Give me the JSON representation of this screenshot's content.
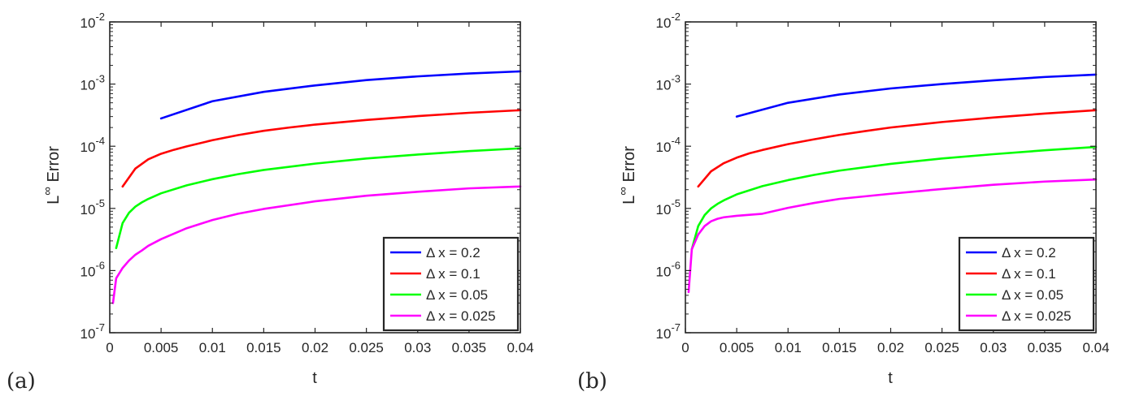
{
  "figure": {
    "colors": {
      "axis": "#262626",
      "text": "#262626",
      "legend_border": "#262626"
    }
  },
  "chart_data": [
    {
      "panel_label": "(a)",
      "type": "line",
      "xlabel": "t",
      "ylabel_base": "L",
      "ylabel_sup": "∞",
      "ylabel_rest": " Error",
      "xscale": "linear",
      "yscale": "log",
      "xlim": [
        0,
        0.04
      ],
      "ylim": [
        1e-07,
        0.01
      ],
      "xticks": [
        0,
        0.005,
        0.01,
        0.015,
        0.02,
        0.025,
        0.03,
        0.035,
        0.04
      ],
      "xtick_labels": [
        "0",
        "0.005",
        "0.01",
        "0.015",
        "0.02",
        "0.025",
        "0.03",
        "0.035",
        "0.04"
      ],
      "yticks": [
        {
          "value": 1e-07,
          "base": "10",
          "exp": "-7"
        },
        {
          "value": 1e-06,
          "base": "10",
          "exp": "-6"
        },
        {
          "value": 1e-05,
          "base": "10",
          "exp": "-5"
        },
        {
          "value": 0.0001,
          "base": "10",
          "exp": "-4"
        },
        {
          "value": 0.001,
          "base": "10",
          "exp": "-3"
        },
        {
          "value": 0.01,
          "base": "10",
          "exp": "-2"
        }
      ],
      "grid": false,
      "legend_position": "bottom-right",
      "series": [
        {
          "name": "Δ x = 0.2",
          "color": "#0000ff",
          "x": [
            0.005,
            0.01,
            0.015,
            0.02,
            0.025,
            0.03,
            0.035,
            0.04
          ],
          "y": [
            0.00028,
            0.00053,
            0.00075,
            0.00095,
            0.00116,
            0.00133,
            0.00148,
            0.0016
          ]
        },
        {
          "name": "Δ x = 0.1",
          "color": "#ff0000",
          "x": [
            0.00125,
            0.0025,
            0.00375,
            0.005,
            0.00625,
            0.0075,
            0.01,
            0.0125,
            0.015,
            0.0175,
            0.02,
            0.025,
            0.03,
            0.035,
            0.04
          ],
          "y": [
            2.25e-05,
            4.38e-05,
            6.16e-05,
            7.57e-05,
            8.77e-05,
            9.95e-05,
            0.000125,
            0.000151,
            0.000177,
            0.0002,
            0.000223,
            0.000265,
            0.000305,
            0.000345,
            0.00038
          ]
        },
        {
          "name": "Δ x = 0.05",
          "color": "#00ff00",
          "x": [
            0.000625,
            0.00125,
            0.001875,
            0.0025,
            0.003125,
            0.00375,
            0.005,
            0.0075,
            0.01,
            0.0125,
            0.015,
            0.02,
            0.025,
            0.03,
            0.035,
            0.04
          ],
          "y": [
            2.3e-06,
            5.8e-06,
            8.5e-06,
            1.07e-05,
            1.25e-05,
            1.42e-05,
            1.75e-05,
            2.35e-05,
            2.95e-05,
            3.55e-05,
            4.15e-05,
            5.25e-05,
            6.35e-05,
            7.35e-05,
            8.35e-05,
            9.25e-05
          ]
        },
        {
          "name": "Δ x = 0.025",
          "color": "#ff00ff",
          "x": [
            0.0003125,
            0.000625,
            0.00125,
            0.001875,
            0.0025,
            0.003125,
            0.00375,
            0.005,
            0.0075,
            0.01,
            0.0125,
            0.015,
            0.02,
            0.025,
            0.03,
            0.035,
            0.04
          ],
          "y": [
            3e-07,
            7.5e-07,
            1.1e-06,
            1.45e-06,
            1.8e-06,
            2.1e-06,
            2.5e-06,
            3.2e-06,
            4.8e-06,
            6.5e-06,
            8.2e-06,
            9.8e-06,
            1.3e-05,
            1.6e-05,
            1.85e-05,
            2.1e-05,
            2.25e-05
          ]
        }
      ]
    },
    {
      "panel_label": "(b)",
      "type": "line",
      "xlabel": "t",
      "ylabel_base": "L",
      "ylabel_sup": "∞",
      "ylabel_rest": " Error",
      "xscale": "linear",
      "yscale": "log",
      "xlim": [
        0,
        0.04
      ],
      "ylim": [
        1e-07,
        0.01
      ],
      "xticks": [
        0,
        0.005,
        0.01,
        0.015,
        0.02,
        0.025,
        0.03,
        0.035,
        0.04
      ],
      "xtick_labels": [
        "0",
        "0.005",
        "0.01",
        "0.015",
        "0.02",
        "0.025",
        "0.03",
        "0.035",
        "0.04"
      ],
      "yticks": [
        {
          "value": 1e-07,
          "base": "10",
          "exp": "-7"
        },
        {
          "value": 1e-06,
          "base": "10",
          "exp": "-6"
        },
        {
          "value": 1e-05,
          "base": "10",
          "exp": "-5"
        },
        {
          "value": 0.0001,
          "base": "10",
          "exp": "-4"
        },
        {
          "value": 0.001,
          "base": "10",
          "exp": "-3"
        },
        {
          "value": 0.01,
          "base": "10",
          "exp": "-2"
        }
      ],
      "grid": false,
      "legend_position": "bottom-right",
      "series": [
        {
          "name": "Δ x = 0.2",
          "color": "#0000ff",
          "x": [
            0.005,
            0.01,
            0.015,
            0.02,
            0.025,
            0.03,
            0.035,
            0.04
          ],
          "y": [
            0.0003,
            0.0005,
            0.00068,
            0.00085,
            0.001,
            0.00115,
            0.0013,
            0.00142
          ]
        },
        {
          "name": "Δ x = 0.1",
          "color": "#ff0000",
          "x": [
            0.00125,
            0.0025,
            0.00375,
            0.005,
            0.00625,
            0.0075,
            0.01,
            0.0125,
            0.015,
            0.0175,
            0.02,
            0.025,
            0.03,
            0.035,
            0.04
          ],
          "y": [
            2.25e-05,
            3.95e-05,
            5.35e-05,
            6.55e-05,
            7.7e-05,
            8.7e-05,
            0.000108,
            0.000129,
            0.000152,
            0.000175,
            0.0002,
            0.000245,
            0.00029,
            0.000335,
            0.00038
          ]
        },
        {
          "name": "Δ x = 0.05",
          "color": "#00ff00",
          "x": [
            0.000625,
            0.00125,
            0.001875,
            0.0025,
            0.003125,
            0.00375,
            0.005,
            0.0075,
            0.01,
            0.0125,
            0.015,
            0.02,
            0.025,
            0.03,
            0.035,
            0.04
          ],
          "y": [
            2.2e-06,
            5.2e-06,
            7.8e-06,
            1e-05,
            1.18e-05,
            1.35e-05,
            1.68e-05,
            2.28e-05,
            2.85e-05,
            3.45e-05,
            4.05e-05,
            5.2e-05,
            6.35e-05,
            7.45e-05,
            8.6e-05,
            9.75e-05
          ]
        },
        {
          "name": "Δ x = 0.025",
          "color": "#ff00ff",
          "x": [
            0.0003125,
            0.000625,
            0.00125,
            0.001875,
            0.0025,
            0.003125,
            0.00375,
            0.005,
            0.0075,
            0.01,
            0.0125,
            0.015,
            0.02,
            0.025,
            0.03,
            0.035,
            0.04
          ],
          "y": [
            4.5e-07,
            2.2e-06,
            3.8e-06,
            5.2e-06,
            6.2e-06,
            6.8e-06,
            7.2e-06,
            7.6e-06,
            8.2e-06,
            1.02e-05,
            1.22e-05,
            1.42e-05,
            1.72e-05,
            2.05e-05,
            2.4e-05,
            2.7e-05,
            2.92e-05
          ]
        }
      ]
    }
  ]
}
